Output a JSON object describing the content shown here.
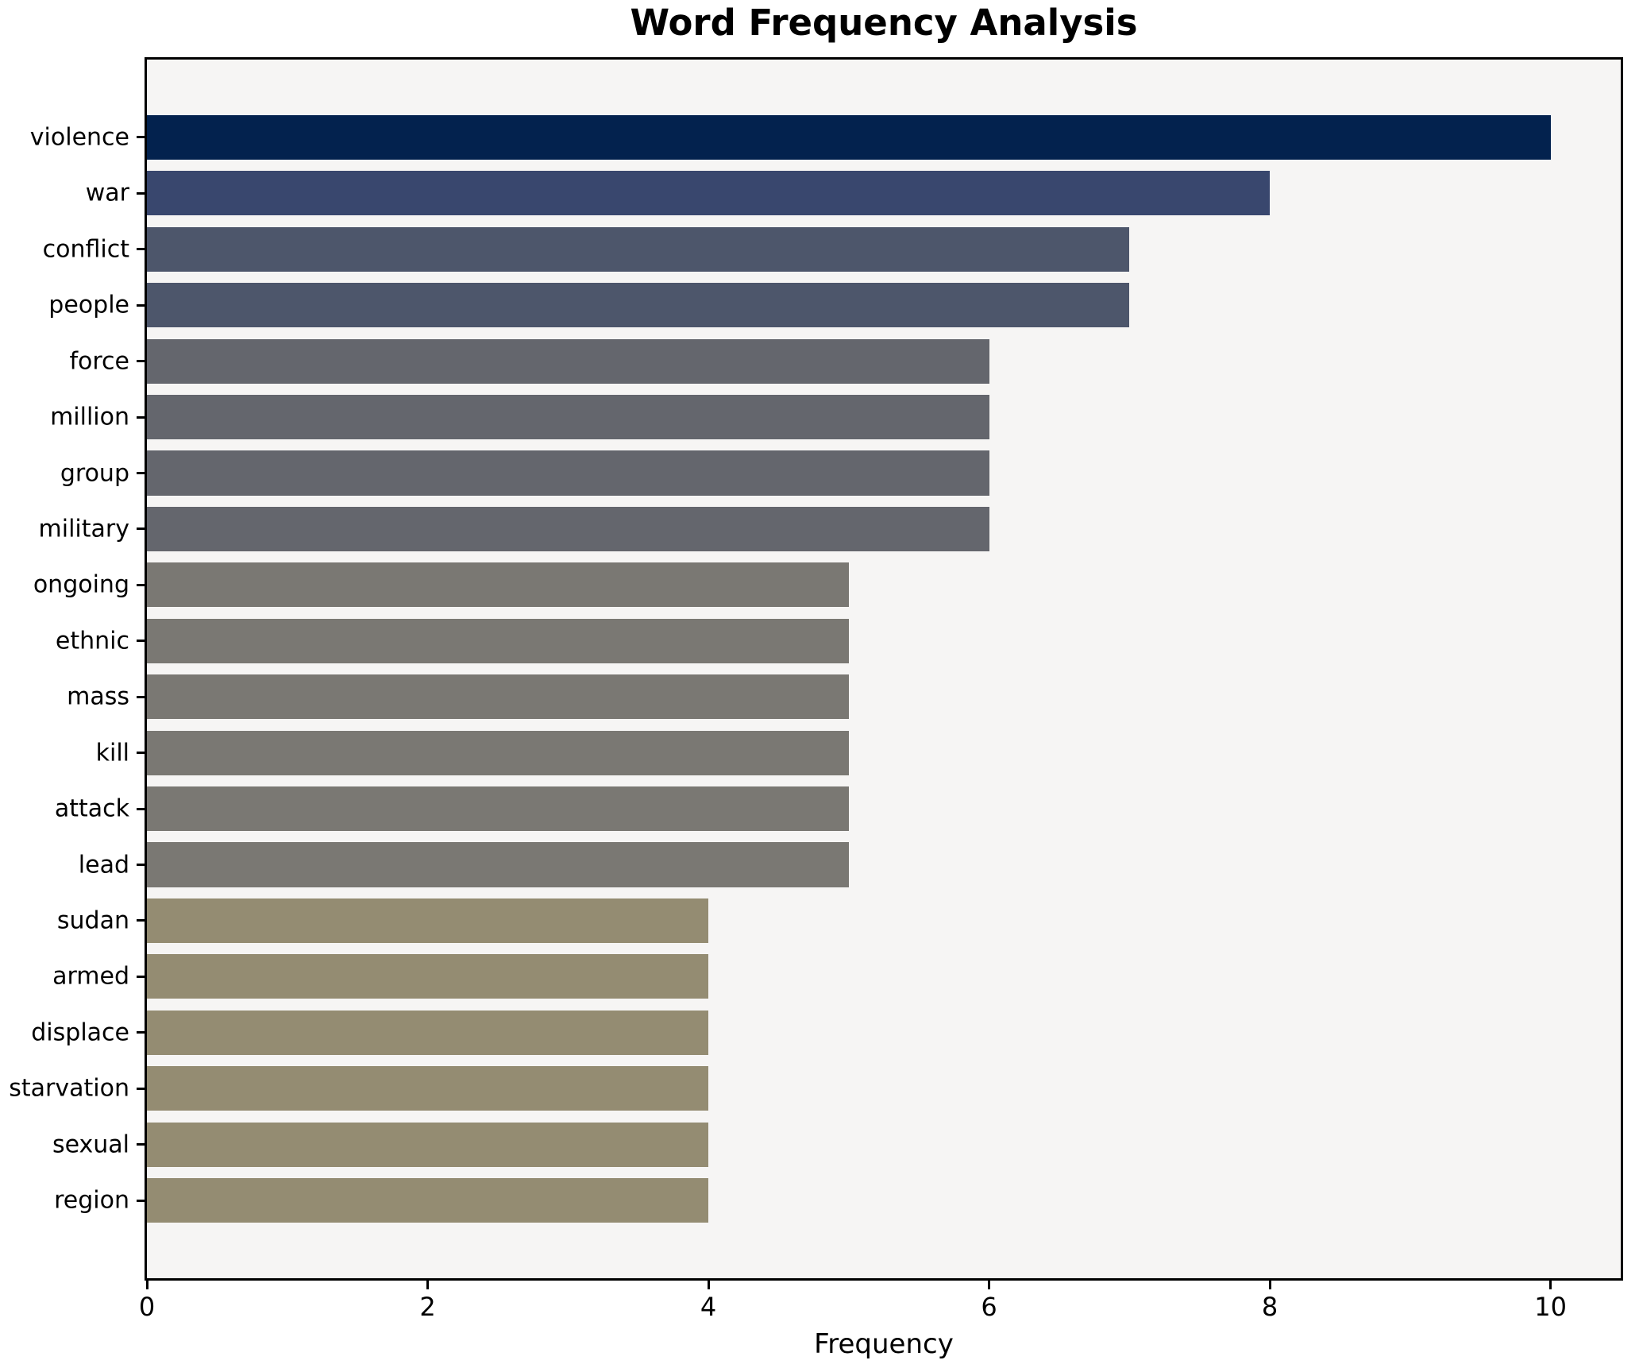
{
  "title": "Word Frequency Analysis",
  "chart_data": {
    "type": "bar",
    "orientation": "horizontal",
    "title": "Word Frequency Analysis",
    "xlabel": "Frequency",
    "ylabel": "",
    "categories": [
      "violence",
      "war",
      "conflict",
      "people",
      "force",
      "million",
      "group",
      "military",
      "ongoing",
      "ethnic",
      "mass",
      "kill",
      "attack",
      "lead",
      "sudan",
      "armed",
      "displace",
      "starvation",
      "sexual",
      "region"
    ],
    "values": [
      10,
      8,
      7,
      7,
      6,
      6,
      6,
      6,
      5,
      5,
      5,
      5,
      5,
      5,
      4,
      4,
      4,
      4,
      4,
      4
    ],
    "bar_colors": [
      "#03224e",
      "#39476e",
      "#4d566b",
      "#4d566b",
      "#64666d",
      "#64666d",
      "#64666d",
      "#64666d",
      "#7a7873",
      "#7a7873",
      "#7a7873",
      "#7a7873",
      "#7a7873",
      "#7a7873",
      "#948c72",
      "#948c72",
      "#948c72",
      "#948c72",
      "#948c72",
      "#948c72"
    ],
    "xticks": [
      0,
      2,
      4,
      6,
      8,
      10
    ],
    "xlim": [
      0,
      10.5
    ],
    "grid": false,
    "legend_position": "none",
    "plot_background": "#f6f5f4",
    "figure_background": "#ffffff",
    "bar_height_fraction": 0.8
  }
}
